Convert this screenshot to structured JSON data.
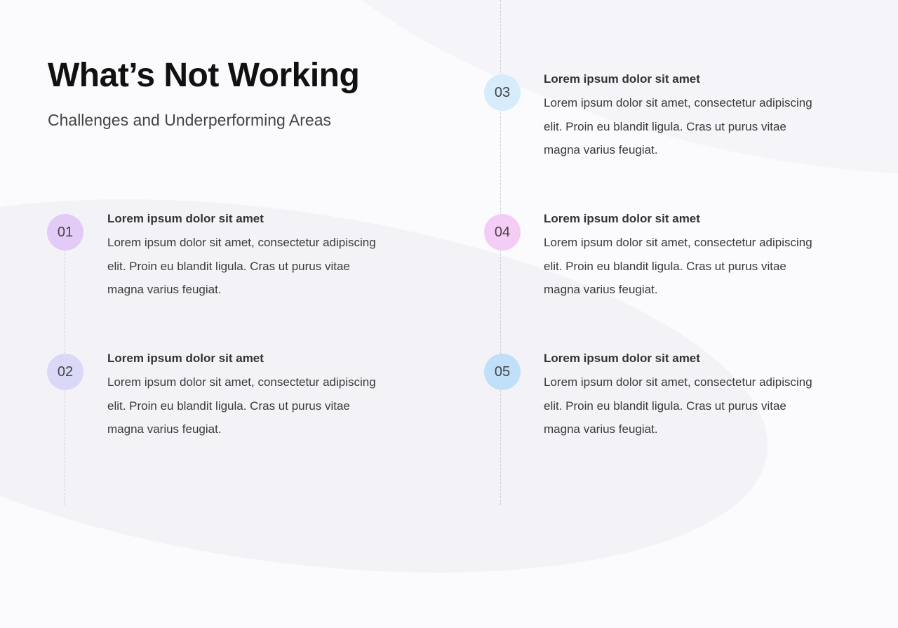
{
  "title": "What’s Not Working",
  "subtitle": "Challenges and Underperforming Areas",
  "items": [
    {
      "number": "01",
      "heading": "Lorem ipsum dolor sit amet",
      "body": "Lorem ipsum dolor sit amet, consectetur adipiscing elit. Proin eu blandit ligula. Cras ut purus vitae magna varius feugiat.",
      "color": "#e2cbf7"
    },
    {
      "number": "02",
      "heading": "Lorem ipsum dolor sit amet",
      "body": "Lorem ipsum dolor sit amet, consectetur adipiscing elit. Proin eu blandit ligula. Cras ut purus vitae magna varius feugiat.",
      "color": "#d9d9f7"
    },
    {
      "number": "03",
      "heading": "Lorem ipsum dolor sit amet",
      "body": "Lorem ipsum dolor sit amet, consectetur adipiscing elit. Proin eu blandit ligula. Cras ut purus vitae magna varius feugiat.",
      "color": "#d6ecfb"
    },
    {
      "number": "04",
      "heading": "Lorem ipsum dolor sit amet",
      "body": "Lorem ipsum dolor sit amet, consectetur adipiscing elit. Proin eu blandit ligula. Cras ut purus vitae magna varius feugiat.",
      "color": "#f3cdf6"
    },
    {
      "number": "05",
      "heading": "Lorem ipsum dolor sit amet",
      "body": "Lorem ipsum dolor sit amet, consectetur adipiscing elit. Proin eu blandit ligula. Cras ut purus vitae magna varius feugiat.",
      "color": "#bfe0f8"
    }
  ]
}
